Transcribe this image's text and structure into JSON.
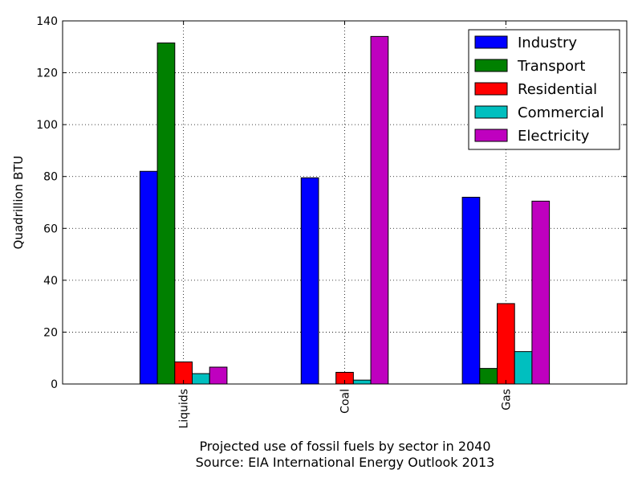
{
  "chart_data": {
    "type": "bar",
    "categories": [
      "Liquids",
      "Coal",
      "Gas"
    ],
    "series": [
      {
        "name": "Industry",
        "color": "#0000ff",
        "values": [
          82,
          79.5,
          72
        ]
      },
      {
        "name": "Transport",
        "color": "#008000",
        "values": [
          131.5,
          0,
          6
        ]
      },
      {
        "name": "Residential",
        "color": "#ff0000",
        "values": [
          8.5,
          4.5,
          31
        ]
      },
      {
        "name": "Commercial",
        "color": "#00bfbf",
        "values": [
          4,
          1.5,
          12.5
        ]
      },
      {
        "name": "Electricity",
        "color": "#bf00bf",
        "values": [
          6.5,
          134,
          70.5
        ]
      }
    ],
    "ylabel": "Quadrillion BTU",
    "xlabel_lines": [
      "Projected use of fossil fuels by sector in 2040",
      "Source: EIA International Energy Outlook 2013"
    ],
    "ylim": [
      0,
      140
    ],
    "yticks": [
      0,
      20,
      40,
      60,
      80,
      100,
      120,
      140
    ],
    "grid": true,
    "legend_position": "top-right"
  }
}
